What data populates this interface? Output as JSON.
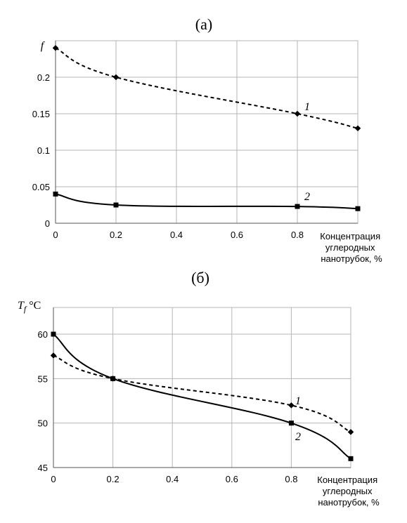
{
  "chart_data": [
    {
      "type": "line",
      "panel_label": "(а)",
      "ylabel": "f",
      "xlabel_lines": [
        "Концентрация",
        "углеродных",
        "нанотрубок, %"
      ],
      "x": [
        0,
        0.2,
        0.8,
        1.0
      ],
      "xticks": [
        0,
        0.2,
        0.4,
        0.6,
        0.8
      ],
      "xtick_labels": [
        "0",
        "0.2",
        "0.4",
        "0.6",
        "0.8"
      ],
      "xlim": [
        0,
        1.0
      ],
      "yticks": [
        0,
        0.05,
        0.1,
        0.15,
        0.2
      ],
      "ytick_labels": [
        "0",
        "0.05",
        "0.1",
        "0.15",
        "0.2"
      ],
      "ylim": [
        0,
        0.25
      ],
      "grid": true,
      "series": [
        {
          "name": "1",
          "style": "dashed",
          "values": [
            0.24,
            0.2,
            0.15,
            0.13
          ]
        },
        {
          "name": "2",
          "style": "solid",
          "values": [
            0.04,
            0.025,
            0.023,
            0.02
          ]
        }
      ]
    },
    {
      "type": "line",
      "panel_label": "(б)",
      "ylabel": "T",
      "ylabel_sub": "f",
      "ylabel_unit": "°C",
      "xlabel_lines": [
        "Концентрация",
        "углеродных",
        "нанотрубок, %"
      ],
      "x": [
        0,
        0.2,
        0.8,
        1.0
      ],
      "xticks": [
        0,
        0.2,
        0.4,
        0.6,
        0.8
      ],
      "xtick_labels": [
        "0",
        "0.2",
        "0.4",
        "0.6",
        "0.8"
      ],
      "xlim": [
        0,
        1.0
      ],
      "yticks": [
        45,
        50,
        55,
        60
      ],
      "ytick_labels": [
        "45",
        "50",
        "55",
        "60"
      ],
      "ylim": [
        45,
        63
      ],
      "grid": true,
      "series": [
        {
          "name": "1",
          "style": "dashed",
          "values": [
            57.6,
            55,
            52,
            49
          ]
        },
        {
          "name": "2",
          "style": "solid",
          "values": [
            60,
            55,
            50,
            46
          ]
        }
      ]
    }
  ]
}
